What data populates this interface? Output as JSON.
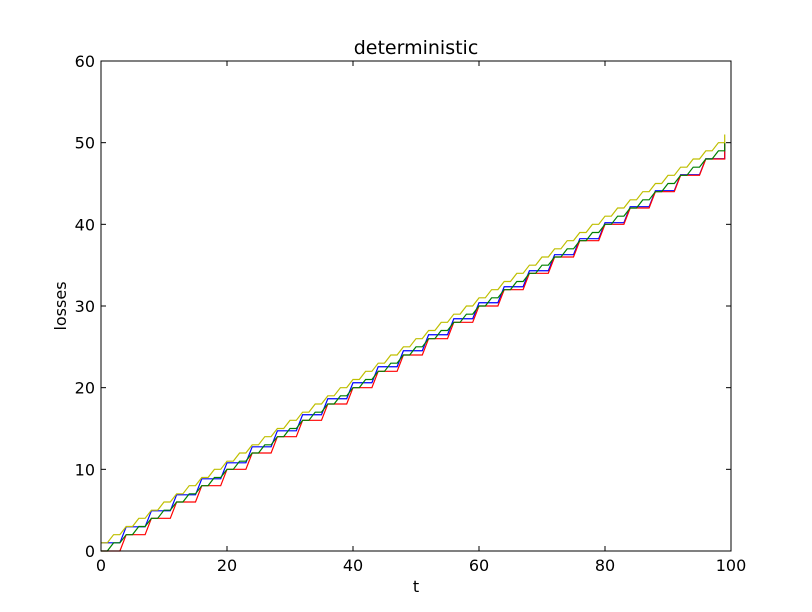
{
  "chart_data": {
    "type": "line",
    "title": "deterministic",
    "xlabel": "t",
    "ylabel": "losses",
    "xlim": [
      0,
      100
    ],
    "ylim": [
      0,
      60
    ],
    "xticks": [
      0,
      20,
      40,
      60,
      80,
      100
    ],
    "yticks": [
      0,
      10,
      20,
      30,
      40,
      50,
      60
    ],
    "xtick_labels": [
      "0",
      "20",
      "40",
      "60",
      "80",
      "100"
    ],
    "ytick_labels": [
      "0",
      "10",
      "20",
      "30",
      "40",
      "50",
      "60"
    ],
    "grid": false,
    "series": [
      {
        "color": "#0000ff",
        "pattern": "staircase",
        "x_start": 0,
        "x_end": 99,
        "y_start": 1,
        "y_end": 50,
        "step_period": 4
      },
      {
        "color": "#ff0000",
        "pattern": "staircase",
        "x_start": 0,
        "x_end": 99,
        "y_start": 0,
        "y_end": 50,
        "step_period": 4
      },
      {
        "color": "#008000",
        "pattern": "staircase",
        "x_start": 0,
        "x_end": 99,
        "y_start": 0,
        "y_end": 50,
        "step_period": 2
      },
      {
        "color": "#bfbf00",
        "pattern": "staircase",
        "x_start": 0,
        "x_end": 99,
        "y_start": 1,
        "y_end": 51,
        "step_period": 2
      }
    ]
  }
}
